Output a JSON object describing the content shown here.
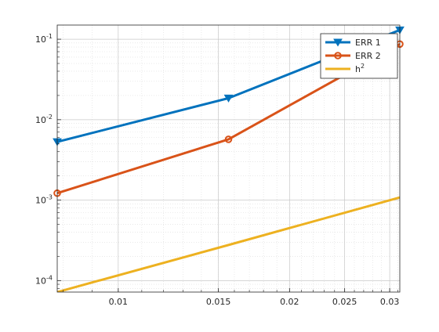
{
  "chart_data": {
    "type": "line",
    "xscale": "log",
    "yscale": "log",
    "xlim": [
      0.0078125,
      0.03125
    ],
    "ylim": [
      7.2e-05,
      0.15
    ],
    "grid": true,
    "minor_grid": true,
    "legend_position": "top-right",
    "xticks": [
      {
        "value": 0.01,
        "label": "0.01"
      },
      {
        "value": 0.015,
        "label": "0.015"
      },
      {
        "value": 0.02,
        "label": "0.02"
      },
      {
        "value": 0.025,
        "label": "0.025"
      },
      {
        "value": 0.03,
        "label": "0.03"
      }
    ],
    "yticks": [
      {
        "value": 0.0001,
        "base": "10",
        "exp": "-4"
      },
      {
        "value": 0.001,
        "base": "10",
        "exp": "-3"
      },
      {
        "value": 0.01,
        "base": "10",
        "exp": "-2"
      },
      {
        "value": 0.1,
        "base": "10",
        "exp": "-1"
      }
    ],
    "series": [
      {
        "name": "ERR 1",
        "color": "#0072BD",
        "marker": "triangle-down",
        "x": [
          0.0078125,
          0.015625,
          0.03125
        ],
        "y": [
          0.0053,
          0.0185,
          0.13
        ]
      },
      {
        "name": "ERR 2",
        "color": "#D95319",
        "marker": "circle",
        "x": [
          0.0078125,
          0.015625,
          0.03125
        ],
        "y": [
          0.00122,
          0.0057,
          0.087
        ]
      },
      {
        "name": "h",
        "name_sup": "2",
        "color": "#EDB120",
        "marker": "none",
        "x": [
          0.0078125,
          0.015625,
          0.03125
        ],
        "y": [
          7.2e-05,
          0.000277,
          0.00108
        ]
      }
    ]
  }
}
